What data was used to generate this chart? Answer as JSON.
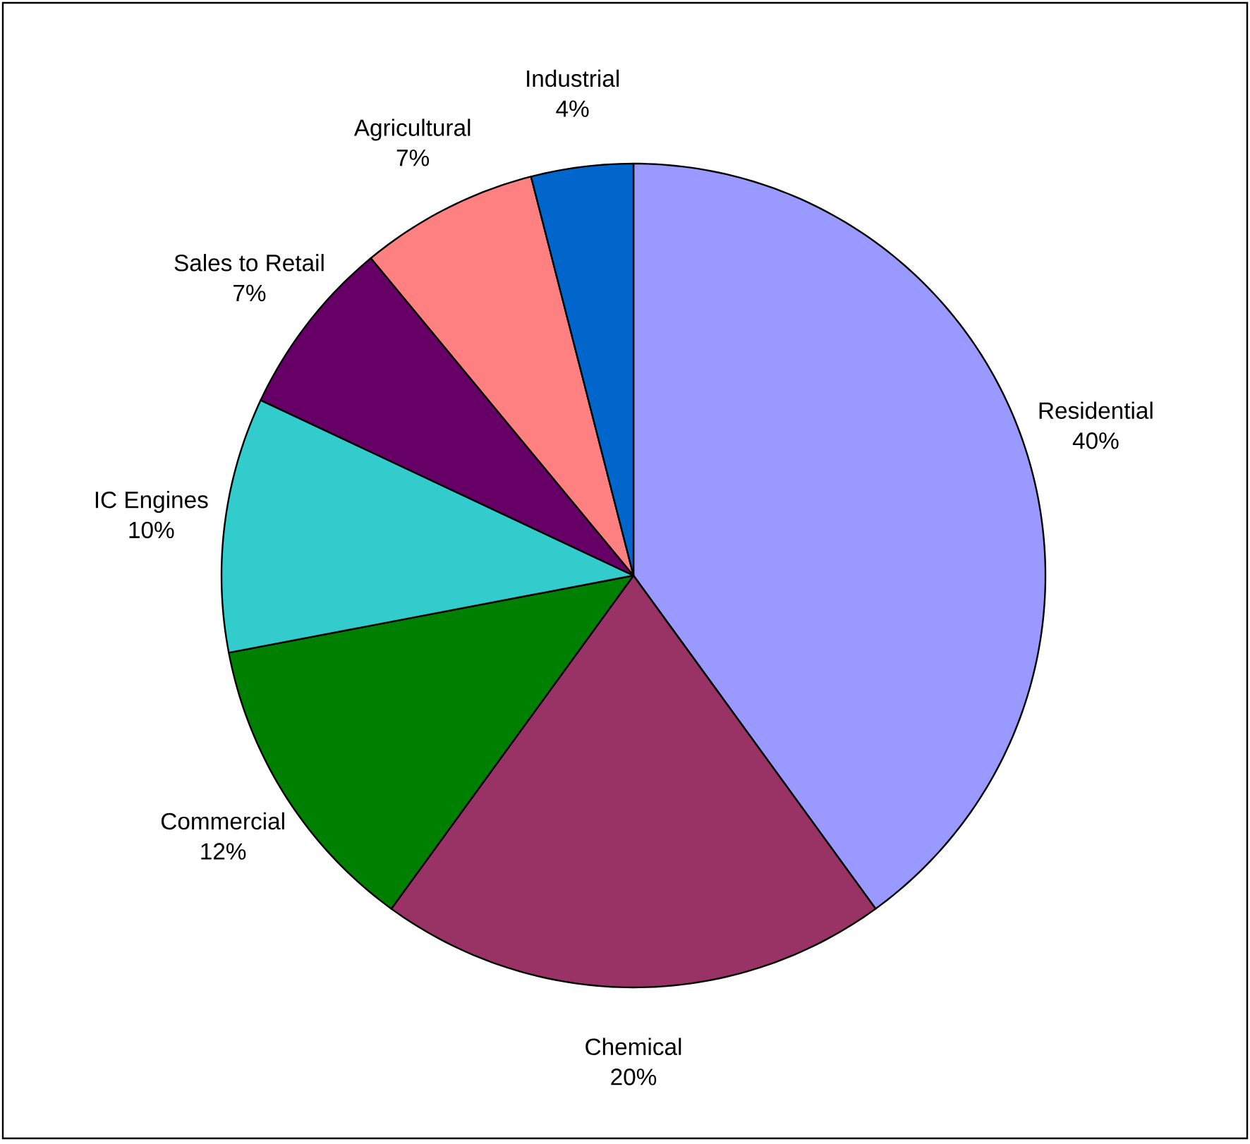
{
  "chart_data": {
    "type": "pie",
    "categories": [
      "Residential",
      "Chemical",
      "Commercial",
      "IC Engines",
      "Sales to Retail",
      "Agricultural",
      "Industrial"
    ],
    "values": [
      40,
      20,
      12,
      10,
      7,
      7,
      4
    ],
    "value_labels": [
      "40%",
      "20%",
      "12%",
      "10%",
      "7%",
      "7%",
      "4%"
    ],
    "colors": [
      "#9999ff",
      "#993366",
      "#008000",
      "#33cccc",
      "#660066",
      "#ff8080",
      "#0066cc"
    ]
  }
}
